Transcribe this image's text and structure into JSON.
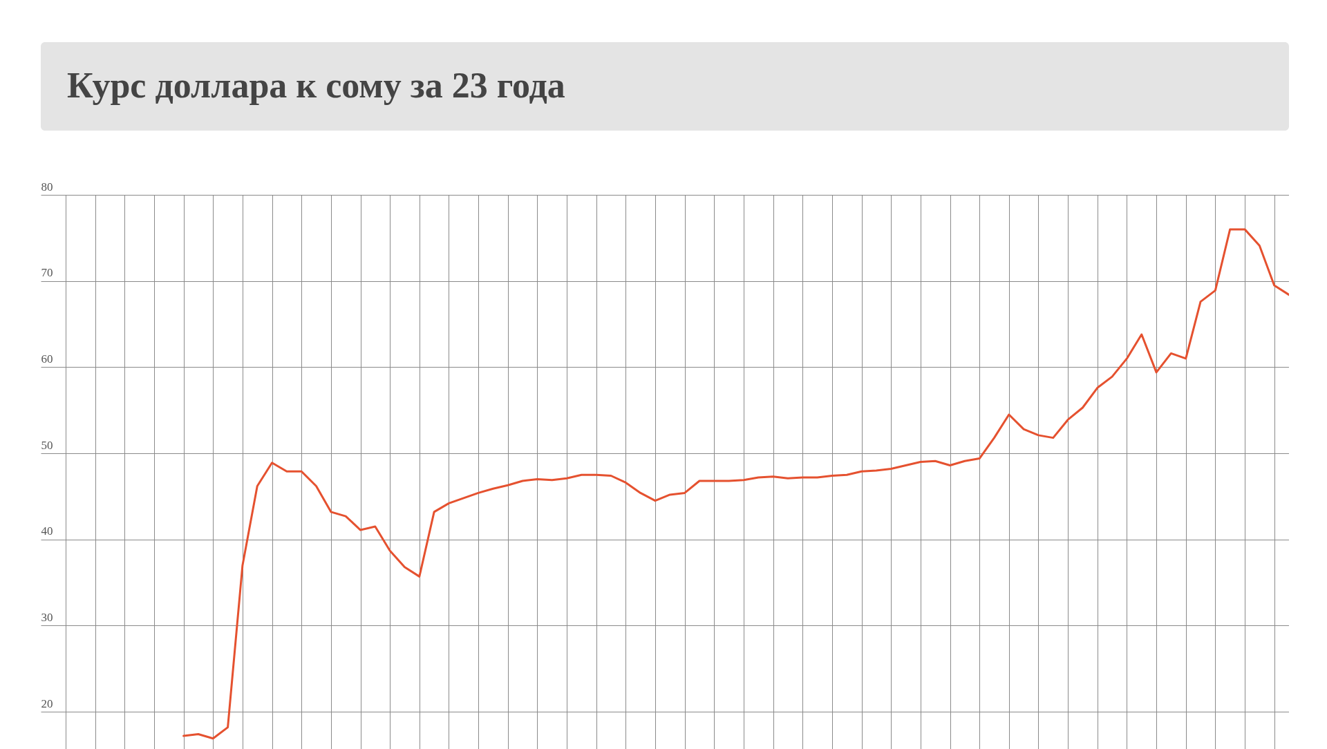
{
  "chart_data": {
    "type": "line",
    "title": "Курс доллара к сому за 23 года",
    "categories": [
      null,
      null,
      null,
      null,
      null,
      null,
      null,
      null,
      null,
      null,
      null,
      null,
      null,
      null,
      null,
      null,
      null,
      null,
      null,
      null,
      null,
      null,
      null,
      null,
      null,
      null,
      null,
      null,
      null,
      null,
      null,
      null,
      null,
      null,
      null,
      null,
      null,
      null,
      null,
      null,
      null,
      null,
      null,
      null,
      null,
      null,
      null,
      null,
      null,
      null,
      null,
      null,
      null,
      null,
      null,
      null,
      null,
      null,
      null,
      null,
      null,
      null,
      null,
      null,
      null,
      null,
      null,
      null,
      null,
      null,
      null,
      null,
      null,
      null,
      null,
      null,
      null,
      null,
      null,
      null,
      null,
      null,
      null,
      null
    ],
    "series": [
      {
        "color": "#e5512f",
        "values": [
          null,
          null,
          null,
          null,
          null,
          null,
          null,
          null,
          17.2,
          17.4,
          16.9,
          18.2,
          37.0,
          46.2,
          48.9,
          47.9,
          47.9,
          46.2,
          43.2,
          42.7,
          41.1,
          41.5,
          38.7,
          36.8,
          35.7,
          43.2,
          44.2,
          44.8,
          45.4,
          45.9,
          46.3,
          46.8,
          47.0,
          46.9,
          47.1,
          47.5,
          47.5,
          47.4,
          46.6,
          45.4,
          44.5,
          45.2,
          45.4,
          46.8,
          46.8,
          46.8,
          46.9,
          47.2,
          47.3,
          47.1,
          47.2,
          47.2,
          47.4,
          47.5,
          47.9,
          48.0,
          48.2,
          48.6,
          49.0,
          49.1,
          48.6,
          49.1,
          49.4,
          51.8,
          54.5,
          52.8,
          52.1,
          51.8,
          53.9,
          55.3,
          57.6,
          58.9,
          61.0,
          63.8,
          59.4,
          61.6,
          61.0,
          67.6,
          68.9,
          76.0,
          76.0,
          74.1,
          69.5,
          68.4
        ]
      }
    ],
    "ylim": [
      15.6,
      80
    ],
    "yticks": [
      20,
      30,
      40,
      50,
      60,
      70,
      80
    ],
    "grid": true,
    "tick_labels": "y",
    "marker": "none",
    "line_style": "solid"
  }
}
